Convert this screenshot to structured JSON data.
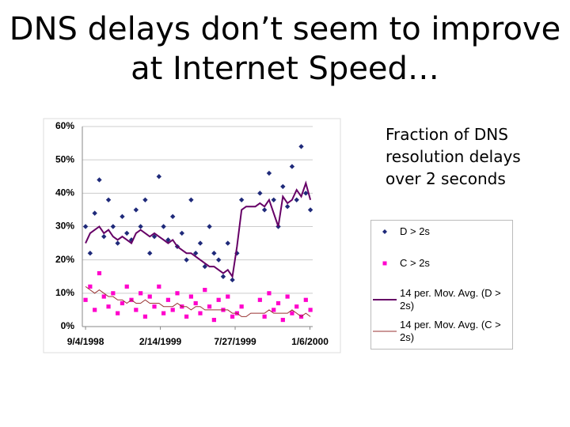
{
  "header": {
    "title": "DNS delays don’t seem to improve at Internet Speed…"
  },
  "note": "Fraction of DNS resolution delays over 2 seconds",
  "chart_data": {
    "type": "scatter",
    "x": [
      "1998-09-04",
      "1998-09-14",
      "1998-09-24",
      "1998-10-04",
      "1998-10-14",
      "1998-10-24",
      "1998-11-03",
      "1998-11-13",
      "1998-11-23",
      "1998-12-03",
      "1998-12-13",
      "1998-12-23",
      "1999-01-02",
      "1999-01-12",
      "1999-01-22",
      "1999-02-01",
      "1999-02-11",
      "1999-02-21",
      "1999-03-03",
      "1999-03-13",
      "1999-03-23",
      "1999-04-02",
      "1999-04-12",
      "1999-04-22",
      "1999-05-02",
      "1999-05-12",
      "1999-05-22",
      "1999-06-01",
      "1999-06-11",
      "1999-06-21",
      "1999-07-01",
      "1999-07-11",
      "1999-07-21",
      "1999-07-31",
      "1999-08-10",
      "1999-08-20",
      "1999-08-30",
      "1999-09-09",
      "1999-09-19",
      "1999-09-29",
      "1999-10-09",
      "1999-10-19",
      "1999-10-29",
      "1999-11-08",
      "1999-11-18",
      "1999-11-28",
      "1999-12-08",
      "1999-12-18",
      "1999-12-28",
      "2000-01-07"
    ],
    "xlim": [
      "1998-08-28",
      "2000-01-12"
    ],
    "xticks": [
      "9/4/1998",
      "2/14/1999",
      "7/27/1999",
      "1/6/2000"
    ],
    "ylim": [
      0,
      60
    ],
    "yticks": [
      {
        "value": 0,
        "label": "0%"
      },
      {
        "value": 10,
        "label": "10%"
      },
      {
        "value": 20,
        "label": "20%"
      },
      {
        "value": 30,
        "label": "30%"
      },
      {
        "value": 40,
        "label": "40%"
      },
      {
        "value": 50,
        "label": "50%"
      },
      {
        "value": 60,
        "label": "60%"
      }
    ],
    "grid": true,
    "series": [
      {
        "name": "D > 2s",
        "type": "scatter",
        "marker": "diamond",
        "color": "#1f2a7a",
        "values": [
          30,
          22,
          34,
          44,
          27,
          38,
          30,
          25,
          33,
          28,
          26,
          35,
          30,
          38,
          22,
          27,
          45,
          30,
          26,
          33,
          24,
          28,
          20,
          38,
          22,
          25,
          18,
          30,
          22,
          20,
          15,
          25,
          14,
          22,
          38,
          null,
          null,
          null,
          40,
          35,
          46,
          38,
          30,
          42,
          36,
          48,
          38,
          54,
          40,
          35
        ]
      },
      {
        "name": "C > 2s",
        "type": "scatter",
        "marker": "square",
        "color": "#ff00cc",
        "values": [
          8,
          12,
          5,
          16,
          9,
          6,
          10,
          4,
          7,
          12,
          8,
          5,
          10,
          3,
          9,
          6,
          12,
          4,
          8,
          5,
          10,
          6,
          3,
          9,
          7,
          4,
          11,
          6,
          2,
          8,
          5,
          9,
          3,
          4,
          6,
          null,
          null,
          null,
          8,
          3,
          10,
          5,
          7,
          2,
          9,
          4,
          6,
          3,
          8,
          5
        ]
      },
      {
        "name": "14 per. Mov. Avg. (D > 2s)",
        "type": "line",
        "color": "#660066",
        "values": [
          25,
          28,
          29,
          30,
          28,
          29,
          27,
          26,
          27,
          26,
          25,
          28,
          29,
          28,
          27,
          28,
          27,
          26,
          25,
          26,
          24,
          23,
          22,
          22,
          21,
          20,
          19,
          18,
          18,
          17,
          16,
          17,
          15,
          24,
          35,
          36,
          36,
          36,
          37,
          36,
          38,
          34,
          30,
          39,
          37,
          38,
          41,
          39,
          43,
          38
        ]
      },
      {
        "name": "14 per. Mov. Avg. (C > 2s)",
        "type": "line",
        "color": "#993333",
        "values": [
          12,
          11,
          10,
          11,
          10,
          9,
          9,
          8,
          8,
          7,
          8,
          7,
          7,
          8,
          7,
          7,
          7,
          6,
          6,
          6,
          7,
          6,
          6,
          5,
          6,
          6,
          5,
          5,
          5,
          5,
          5,
          5,
          4,
          4,
          3,
          3,
          4,
          4,
          4,
          4,
          5,
          4,
          4,
          4,
          4,
          5,
          4,
          3,
          4,
          3
        ]
      }
    ]
  }
}
